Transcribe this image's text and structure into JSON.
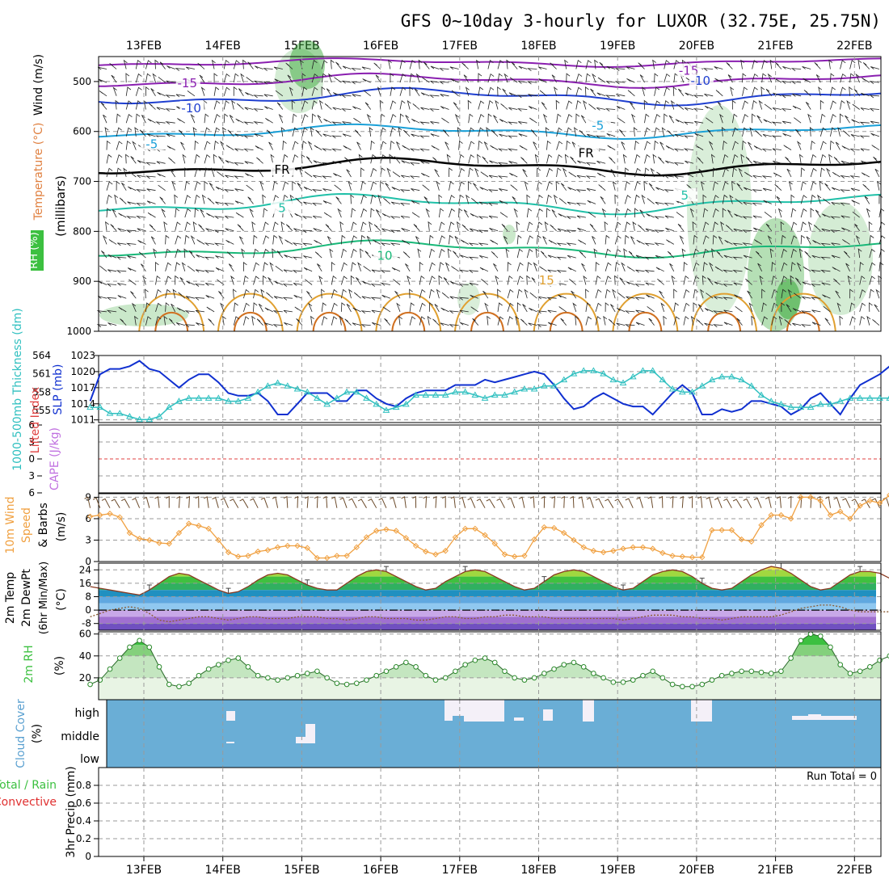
{
  "title": "GFS 0~10day 3-hourly for LUXOR (32.75E, 25.75N)",
  "dates": [
    "13FEB",
    "14FEB",
    "15FEB",
    "16FEB",
    "17FEB",
    "18FEB",
    "19FEB",
    "20FEB",
    "21FEB",
    "22FEB"
  ],
  "colors": {
    "grid": "#9a9a9a",
    "wind_contour_purple": "#8a1fb0",
    "wind_contour_blue": "#1f3fd0",
    "wind_contour_cyan": "#1aa0d8",
    "wind_contour_teal": "#20c0a8",
    "wind_contour_green": "#18b878",
    "wind_contour_orange": "#e0a030",
    "freezing_line": "#000000",
    "slp_line": "#1030d0",
    "thickness_line": "#30c0c0",
    "wind10m_line": "#f0a040",
    "rh2m_fill": "#3cc040",
    "cloud_fill": "#6aaed6",
    "cloud_clear": "#f4f0f8"
  },
  "chart_data": [
    {
      "id": "upper-air",
      "type": "heatmap",
      "ylabel_parts": [
        "RH (%)",
        "Temperature (°C)",
        "Wind (m/s)",
        "(millibars)"
      ],
      "yticks": [
        500,
        600,
        700,
        800,
        900,
        1000
      ],
      "ylim": [
        450,
        1000
      ],
      "contour_labels": [
        {
          "text": "-15",
          "day": 0.55,
          "p": 505,
          "color": "purple"
        },
        {
          "text": "-15",
          "day": 6.9,
          "p": 480,
          "color": "purple"
        },
        {
          "text": "-10",
          "day": 0.6,
          "p": 555,
          "color": "blue"
        },
        {
          "text": "-10",
          "day": 7.05,
          "p": 500,
          "color": "blue"
        },
        {
          "text": "-5",
          "day": 0.1,
          "p": 627,
          "color": "cyan"
        },
        {
          "text": "-5",
          "day": 5.75,
          "p": 590,
          "color": "cyan"
        },
        {
          "text": "FR",
          "day": 1.75,
          "p": 678,
          "color": "black"
        },
        {
          "text": "FR",
          "day": 5.6,
          "p": 645,
          "color": "black"
        },
        {
          "text": "5",
          "day": 1.75,
          "p": 755,
          "color": "teal"
        },
        {
          "text": "5",
          "day": 6.85,
          "p": 730,
          "color": "teal"
        },
        {
          "text": "10",
          "day": 3.05,
          "p": 850,
          "color": "green"
        },
        {
          "text": "15",
          "day": 5.1,
          "p": 900,
          "color": "orange"
        }
      ]
    },
    {
      "id": "slp-thickness",
      "type": "line",
      "ylabel_left": "1000-500mb Thickness (dm)",
      "ylabel_right": "SLP (mb)",
      "yticks_thickness": [
        555,
        558,
        561,
        564
      ],
      "yticks_slp": [
        1011,
        1014,
        1017,
        1020,
        1023
      ],
      "ylim_thickness": [
        553,
        564
      ],
      "ylim_slp": [
        1010.5,
        1023
      ],
      "series": [
        {
          "name": "SLP (mb)",
          "values": [
            1014.5,
            1019.5,
            1020.5,
            1020.5,
            1021,
            1022,
            1020.5,
            1020,
            1018.5,
            1017,
            1018.5,
            1019.5,
            1019.5,
            1018,
            1016,
            1015.5,
            1015.5,
            1016,
            1014.5,
            1012,
            1012,
            1014,
            1016,
            1016,
            1016,
            1014.5,
            1014.5,
            1016.5,
            1016.5,
            1015,
            1014,
            1013.5,
            1015,
            1016,
            1016.5,
            1016.5,
            1016.5,
            1017.5,
            1017.5,
            1017.5,
            1018.5,
            1018,
            1018.5,
            1019,
            1019.5,
            1020,
            1019.5,
            1017.5,
            1015,
            1013,
            1013.5,
            1015,
            1016,
            1015,
            1014,
            1013.5,
            1013.5,
            1012,
            1014,
            1016,
            1017.5,
            1016,
            1012,
            1012,
            1013,
            1012.5,
            1013,
            1014.5,
            1014.5,
            1014,
            1013.5,
            1012,
            1013,
            1015,
            1016,
            1014,
            1012,
            1015,
            1017.5,
            1018.5,
            1019.5,
            1021,
            1022,
            1020.5,
            1020.5,
            1020.5,
            1022,
            1021.5,
            1021.5,
            1022
          ]
        },
        {
          "name": "Thickness (dm)",
          "values": [
            555.5,
            555.5,
            554.5,
            554.5,
            554,
            553.5,
            553.5,
            554,
            555.5,
            556.5,
            557,
            557,
            557,
            557,
            556.5,
            556.5,
            557,
            558,
            559,
            559.5,
            559,
            558.5,
            558,
            557,
            556,
            557,
            558,
            558,
            557,
            556,
            555,
            555.5,
            556,
            557.5,
            557.5,
            557.5,
            557.5,
            558,
            558,
            557.5,
            557,
            557.5,
            557.5,
            558,
            558.5,
            558.5,
            559,
            559,
            560,
            561,
            561.5,
            561.5,
            561,
            560,
            559.5,
            560.5,
            561.5,
            561.5,
            560,
            558.5,
            558,
            558,
            559,
            560,
            560.5,
            560.5,
            560,
            559,
            557.5,
            556.5,
            556,
            555.5,
            555.5,
            555.5,
            556,
            556,
            556.5,
            557,
            557,
            557,
            557,
            557,
            557,
            557,
            557.5,
            558,
            558.5,
            559,
            559,
            559.5
          ]
        }
      ]
    },
    {
      "id": "cape-li",
      "type": "line",
      "ylabel_left": "CAPE (J/kg)",
      "ylabel_right": "Lifted Index",
      "yticks": [
        -6,
        -3,
        0,
        3,
        6
      ],
      "ytick_labels": [
        "6",
        "3",
        "0",
        "3",
        "6"
      ],
      "ylim": [
        -6,
        6
      ],
      "series": []
    },
    {
      "id": "wind10m",
      "type": "line",
      "ylabel_parts": [
        "10m Wind",
        "Speed",
        "& Barbs",
        "(m/s)"
      ],
      "yticks": [
        0,
        3,
        6,
        9
      ],
      "ylim": [
        0,
        9.5
      ],
      "series": [
        {
          "name": "10m Wind Speed",
          "values": [
            6.3,
            6.5,
            6.7,
            6.2,
            4,
            3.2,
            3,
            2.6,
            2.5,
            4,
            5.3,
            5,
            4.6,
            3,
            1.3,
            0.7,
            0.8,
            1.4,
            1.6,
            2,
            2.2,
            2.2,
            1.9,
            0.5,
            0.5,
            0.8,
            0.8,
            2,
            3.4,
            4.3,
            4.5,
            4.3,
            3.3,
            2.2,
            1.4,
            1,
            1.5,
            3.4,
            4.6,
            4.6,
            3.7,
            2.5,
            1,
            0.7,
            0.8,
            3.1,
            4.8,
            4.7,
            4,
            3,
            2,
            1.5,
            1.3,
            1.5,
            1.8,
            2,
            2,
            1.8,
            1.2,
            0.8,
            0.7,
            0.6,
            0.6,
            4.4,
            4.4,
            4.4,
            3.1,
            2.8,
            5.1,
            6.5,
            6.5,
            6,
            9,
            9,
            8.5,
            6.5,
            7,
            6,
            7.8,
            8.5,
            8.2,
            9.3,
            7.6,
            5,
            3,
            2.6,
            2.4,
            2,
            1.8,
            1.6
          ]
        }
      ]
    },
    {
      "id": "temp2m",
      "type": "area",
      "ylabel_parts": [
        "2m Temp",
        "2m DewPt",
        "(6hr Min/Max)",
        "(°C)"
      ],
      "yticks": [
        -8,
        0,
        8,
        16,
        24
      ],
      "ylim": [
        -12,
        28
      ],
      "series": [
        {
          "name": "2m Temp",
          "values": [
            14,
            13,
            12,
            11,
            10,
            9,
            12,
            16,
            20,
            22,
            21,
            18,
            15,
            12,
            10,
            11,
            14,
            18,
            21,
            22,
            21,
            18,
            15,
            13,
            12,
            12,
            16,
            20,
            23,
            24,
            23,
            20,
            17,
            14,
            12,
            13,
            17,
            20,
            23,
            24,
            23,
            20,
            17,
            14,
            12,
            13,
            17,
            21,
            23,
            24,
            23,
            20,
            17,
            14,
            12,
            13,
            17,
            21,
            23,
            24,
            23,
            20,
            16,
            13,
            12,
            13,
            17,
            21,
            24,
            26,
            25,
            22,
            18,
            14,
            12,
            13,
            17,
            21,
            23,
            23,
            22,
            19,
            16,
            13,
            11,
            12,
            14,
            17,
            18,
            17
          ]
        },
        {
          "name": "2m DewPt",
          "values": [
            -4,
            -2,
            0,
            1,
            2,
            1,
            -2,
            -6,
            -7,
            -6,
            -5,
            -4,
            -4,
            -5,
            -6,
            -5,
            -4,
            -4,
            -5,
            -5,
            -5,
            -4,
            -4,
            -4,
            -5,
            -5,
            -6,
            -5,
            -4,
            -4,
            -5,
            -5,
            -5,
            -6,
            -6,
            -5,
            -4,
            -4,
            -5,
            -5,
            -4,
            -4,
            -3,
            -3,
            -4,
            -4,
            -4,
            -5,
            -5,
            -5,
            -5,
            -5,
            -5,
            -5,
            -6,
            -5,
            -4,
            -3,
            -3,
            -3,
            -4,
            -4,
            -5,
            -5,
            -6,
            -5,
            -4,
            -4,
            -4,
            -4,
            -3,
            -1,
            1,
            2,
            3,
            3,
            2,
            0,
            -1,
            -1,
            -1,
            -1,
            -1,
            -1,
            -1,
            -1,
            -2,
            -2,
            -2,
            -2
          ]
        }
      ]
    },
    {
      "id": "rh2m",
      "type": "area",
      "ylabel_parts": [
        "2m RH",
        "(%)"
      ],
      "yticks": [
        20,
        40,
        60
      ],
      "ylim": [
        0,
        62
      ],
      "series": [
        {
          "name": "2m RH",
          "values": [
            14,
            18,
            28,
            38,
            48,
            54,
            48,
            30,
            14,
            12,
            15,
            22,
            28,
            32,
            36,
            38,
            30,
            22,
            20,
            18,
            20,
            22,
            24,
            26,
            20,
            15,
            14,
            15,
            18,
            22,
            26,
            30,
            34,
            30,
            22,
            18,
            20,
            26,
            32,
            36,
            38,
            34,
            26,
            20,
            18,
            20,
            24,
            28,
            32,
            34,
            30,
            24,
            20,
            16,
            16,
            18,
            22,
            26,
            20,
            14,
            12,
            12,
            14,
            18,
            22,
            24,
            26,
            26,
            25,
            24,
            26,
            38,
            54,
            60,
            58,
            48,
            32,
            24,
            26,
            30,
            36,
            40,
            44,
            46,
            42,
            40,
            36,
            34,
            40,
            40
          ]
        }
      ]
    },
    {
      "id": "cloud-cover",
      "type": "heatmap",
      "ylabel_parts": [
        "Cloud Cover",
        "(%)"
      ],
      "levels": [
        "high",
        "middle",
        "low"
      ]
    },
    {
      "id": "precip",
      "type": "bar",
      "ylabel_parts": [
        "Total / Rain",
        "Convective",
        "3hr Precip (mm)"
      ],
      "yticks": [
        0,
        0.2,
        0.4,
        0.6,
        0.8
      ],
      "ytick_labels": [
        "0",
        "0.2",
        "0.4",
        "0.6",
        "0.8"
      ],
      "ylim": [
        0,
        1
      ],
      "annotation": "Run Total = 0",
      "series": []
    }
  ]
}
